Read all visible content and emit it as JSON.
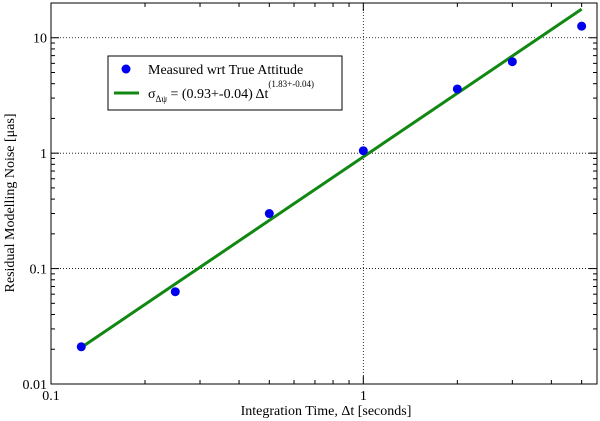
{
  "chart_data": {
    "type": "scatter",
    "xscale": "log",
    "yscale": "log",
    "xlim": [
      0.1,
      5.6
    ],
    "ylim": [
      0.01,
      20
    ],
    "xlabel": "Integration Time, Δt [seconds]",
    "ylabel": "Residual Modelling Noise [μas]",
    "x_ticks": [
      {
        "value": 0.1,
        "label": "0.1"
      },
      {
        "value": 1,
        "label": "1"
      }
    ],
    "y_ticks": [
      {
        "value": 0.01,
        "label": "0.01"
      },
      {
        "value": 0.1,
        "label": "0.1"
      },
      {
        "value": 1,
        "label": "1"
      },
      {
        "value": 10,
        "label": "10"
      }
    ],
    "grid": true,
    "legend_position": "top-left",
    "series": [
      {
        "name": "Measured wrt True Attitude",
        "kind": "scatter",
        "color": "#0000ee",
        "x": [
          0.125,
          0.25,
          0.5,
          1.0,
          2.0,
          3.0,
          5.0
        ],
        "y": [
          0.021,
          0.063,
          0.3,
          1.05,
          3.6,
          6.2,
          12.6
        ]
      },
      {
        "name_main": "σ",
        "name_sub": "Δψ",
        "name_rest": " = (0.93+-0.04) Δt",
        "name_sup": "(1.83+-0.04)",
        "kind": "line",
        "color": "#118811",
        "coefficient": 0.93,
        "exponent": 1.83,
        "x": [
          0.125,
          5.0
        ]
      }
    ]
  }
}
